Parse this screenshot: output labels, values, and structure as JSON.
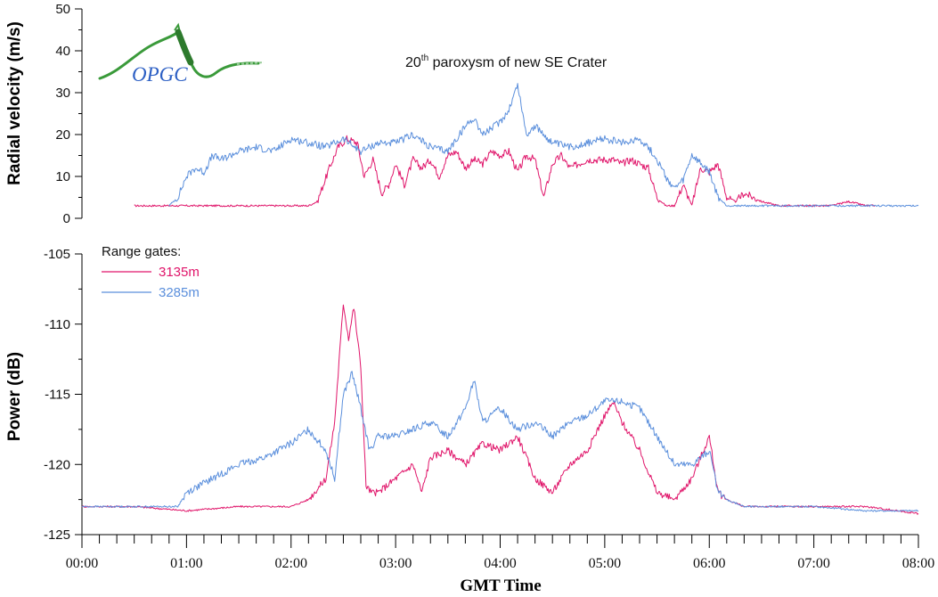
{
  "colors": {
    "series_3135m": "#e0156a",
    "series_3285m": "#5b8fdc",
    "logo_green": "#3a9a3a",
    "logo_blue": "#2c5fc4"
  },
  "logo": {
    "text": "OPGC"
  },
  "chart_data": [
    {
      "type": "line",
      "title_main": "20",
      "title_sup": "th",
      "title_rest": " paroxysm of new SE Crater",
      "xlabel": "",
      "ylabel": "Radial velocity (m/s)",
      "xlim": [
        "00:00",
        "08:00"
      ],
      "ylim": [
        0,
        50
      ],
      "yticks": [
        "0",
        "10",
        "20",
        "30",
        "40",
        "50"
      ],
      "grid": false,
      "series": [
        {
          "name": "3135m",
          "x": [
            "00:30",
            "01:00",
            "01:30",
            "02:00",
            "02:10",
            "02:15",
            "02:22",
            "02:27",
            "02:32",
            "02:38",
            "02:42",
            "02:47",
            "02:52",
            "02:56",
            "03:00",
            "03:05",
            "03:10",
            "03:15",
            "03:20",
            "03:25",
            "03:30",
            "03:35",
            "03:40",
            "03:45",
            "03:50",
            "03:55",
            "04:00",
            "04:05",
            "04:10",
            "04:15",
            "04:20",
            "04:25",
            "04:30",
            "04:35",
            "04:40",
            "04:45",
            "04:50",
            "04:55",
            "05:00",
            "05:05",
            "05:10",
            "05:15",
            "05:20",
            "05:25",
            "05:30",
            "05:35",
            "05:40",
            "05:45",
            "05:50",
            "05:55",
            "06:00",
            "06:05",
            "06:10",
            "06:15",
            "06:20",
            "06:30",
            "06:40",
            "06:50",
            "07:00",
            "07:10",
            "07:20",
            "07:30",
            "07:35"
          ],
          "y": [
            3,
            3,
            3,
            3,
            3,
            4,
            12,
            17,
            19,
            18,
            10,
            14,
            6,
            8,
            13,
            8,
            14,
            12,
            14,
            10,
            15,
            16,
            12,
            14,
            13,
            16,
            15,
            16,
            11,
            15,
            14,
            5,
            13,
            15,
            12,
            13,
            14,
            14,
            14,
            14,
            13,
            14,
            13,
            12,
            5,
            3,
            3,
            8,
            3,
            12,
            11,
            13,
            5,
            4,
            6,
            4,
            3,
            3,
            3,
            3,
            4,
            3,
            3
          ]
        },
        {
          "name": "3285m",
          "x": [
            "00:50",
            "00:55",
            "01:00",
            "01:05",
            "01:10",
            "01:15",
            "01:20",
            "01:30",
            "01:40",
            "01:50",
            "02:00",
            "02:10",
            "02:20",
            "02:30",
            "02:40",
            "02:50",
            "03:00",
            "03:10",
            "03:20",
            "03:30",
            "03:40",
            "03:45",
            "03:50",
            "04:00",
            "04:05",
            "04:10",
            "04:15",
            "04:20",
            "04:30",
            "04:40",
            "04:50",
            "05:00",
            "05:10",
            "05:20",
            "05:25",
            "05:30",
            "05:35",
            "05:40",
            "05:45",
            "05:50",
            "05:55",
            "06:00",
            "06:05",
            "06:10",
            "06:20",
            "06:30",
            "06:40",
            "06:50",
            "07:00",
            "07:30",
            "08:00"
          ],
          "y": [
            3,
            5,
            10,
            12,
            11,
            15,
            14,
            16,
            17,
            16,
            19,
            18,
            17,
            19,
            16,
            18,
            18,
            20,
            17,
            16,
            22,
            24,
            20,
            23,
            26,
            32,
            20,
            22,
            18,
            17,
            18,
            19,
            18,
            19,
            17,
            14,
            10,
            7,
            9,
            15,
            13,
            11,
            5,
            3,
            3,
            3,
            3,
            3,
            3,
            3,
            3
          ]
        }
      ]
    },
    {
      "type": "line",
      "xlabel": "GMT Time",
      "ylabel": "Power (dB)",
      "xlim": [
        "00:00",
        "08:00"
      ],
      "ylim": [
        -125,
        -105
      ],
      "yticks": [
        "-125",
        "-120",
        "-115",
        "-110",
        "-105"
      ],
      "xticks": [
        "00:00",
        "01:00",
        "02:00",
        "03:00",
        "04:00",
        "05:00",
        "06:00",
        "07:00",
        "08:00"
      ],
      "legend_title": "Range gates:",
      "legend_position": "top-left",
      "grid": false,
      "series": [
        {
          "name": "3135m",
          "x": [
            "00:00",
            "00:30",
            "01:00",
            "01:30",
            "02:00",
            "02:10",
            "02:20",
            "02:25",
            "02:30",
            "02:33",
            "02:36",
            "02:40",
            "02:43",
            "02:46",
            "02:50",
            "03:00",
            "03:10",
            "03:15",
            "03:20",
            "03:30",
            "03:40",
            "03:50",
            "04:00",
            "04:10",
            "04:20",
            "04:30",
            "04:40",
            "04:50",
            "05:00",
            "05:05",
            "05:10",
            "05:20",
            "05:30",
            "05:40",
            "05:50",
            "06:00",
            "06:05",
            "06:10",
            "06:20",
            "06:30",
            "07:00",
            "07:30",
            "08:00"
          ],
          "y": [
            -123,
            -123,
            -123.3,
            -123,
            -123,
            -122.5,
            -121,
            -117,
            -108.5,
            -111,
            -108.8,
            -113,
            -121.5,
            -122,
            -122,
            -121,
            -120,
            -122,
            -119.5,
            -119,
            -120,
            -118.5,
            -119,
            -118,
            -121,
            -122,
            -120,
            -119,
            -116.5,
            -115.6,
            -117,
            -119,
            -122,
            -122.5,
            -121,
            -118,
            -122,
            -122.5,
            -123,
            -123,
            -123,
            -123,
            -123.5
          ]
        },
        {
          "name": "3285m",
          "x": [
            "00:00",
            "00:30",
            "00:55",
            "01:00",
            "01:15",
            "01:30",
            "01:45",
            "02:00",
            "02:10",
            "02:20",
            "02:25",
            "02:30",
            "02:35",
            "02:40",
            "02:45",
            "02:50",
            "03:00",
            "03:10",
            "03:20",
            "03:30",
            "03:40",
            "03:45",
            "03:50",
            "04:00",
            "04:10",
            "04:20",
            "04:30",
            "04:40",
            "04:50",
            "05:00",
            "05:10",
            "05:20",
            "05:30",
            "05:40",
            "05:50",
            "06:00",
            "06:05",
            "06:10",
            "06:20",
            "06:30",
            "07:00",
            "07:30",
            "08:00"
          ],
          "y": [
            -123,
            -123,
            -123,
            -122,
            -121,
            -120,
            -119.5,
            -118.5,
            -117.5,
            -119,
            -121,
            -115,
            -113.5,
            -116,
            -119,
            -118,
            -118,
            -117.5,
            -117,
            -118,
            -116,
            -114,
            -117,
            -116,
            -117.5,
            -117,
            -118,
            -117,
            -116.5,
            -115.5,
            -115.5,
            -116,
            -118,
            -120,
            -120,
            -119,
            -122,
            -122.5,
            -123,
            -123,
            -123,
            -123.3,
            -123.3
          ]
        }
      ]
    }
  ]
}
